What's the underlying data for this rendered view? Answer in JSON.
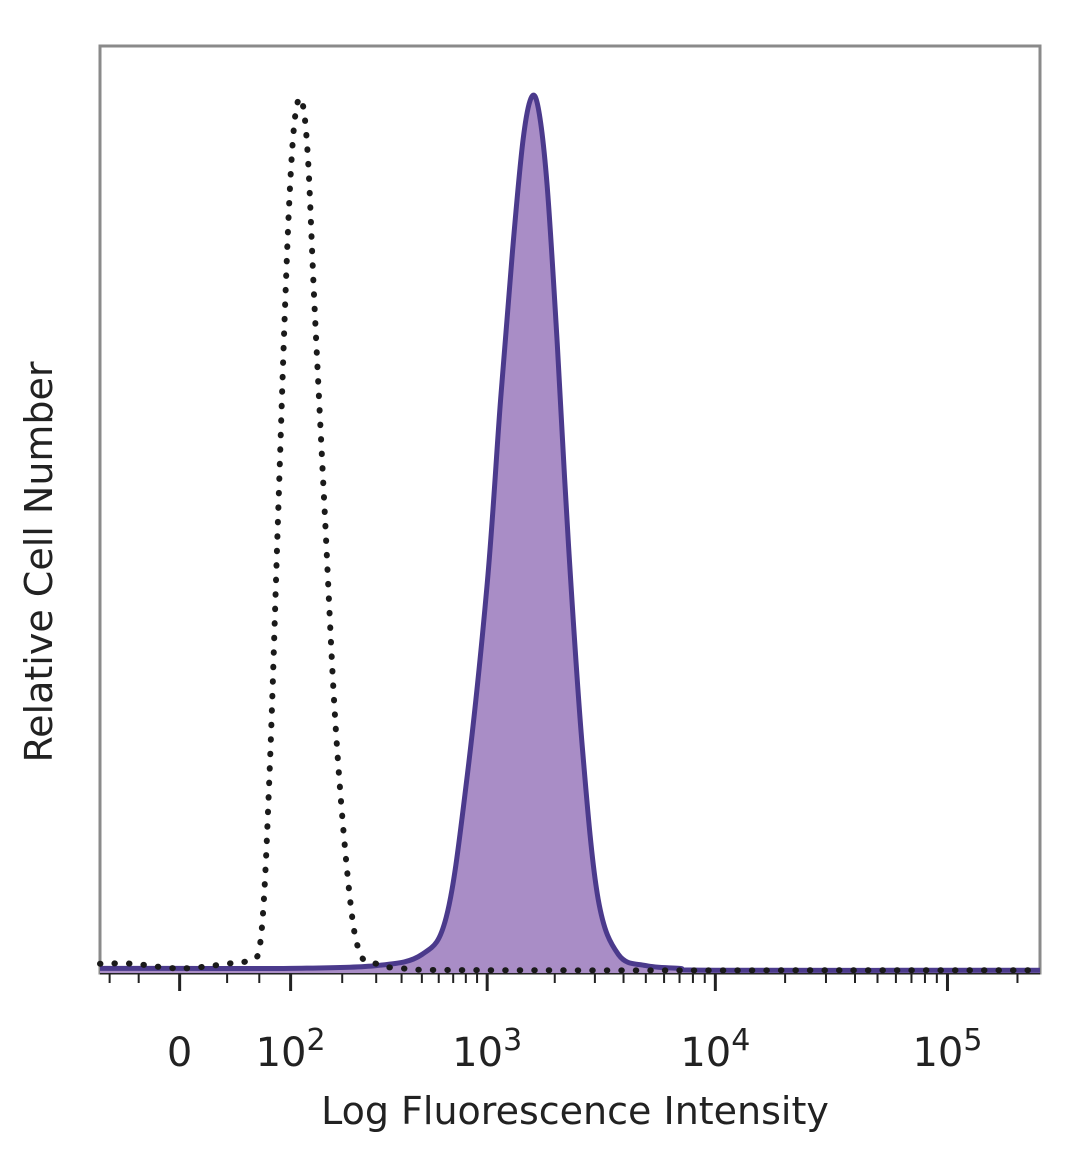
{
  "chart_data": {
    "type": "area",
    "xlabel": "Log Fluorescence Intensity",
    "ylabel": "Relative Cell Number",
    "x_scale": "biexponential",
    "xlim": [
      -60,
      250000
    ],
    "ylim": [
      0,
      100
    ],
    "x_ticks": [
      {
        "value": 0,
        "label": "0"
      },
      {
        "value": 100,
        "label": "10",
        "exp": "2"
      },
      {
        "value": 1000,
        "label": "10",
        "exp": "3"
      },
      {
        "value": 10000,
        "label": "10",
        "exp": "4"
      },
      {
        "value": 100000,
        "label": "10",
        "exp": "5"
      }
    ],
    "minor_ticks": [
      -50,
      -25,
      30,
      60,
      200,
      300,
      400,
      500,
      600,
      700,
      800,
      900,
      2000,
      3000,
      4000,
      5000,
      6000,
      7000,
      8000,
      9000,
      20000,
      30000,
      40000,
      50000,
      60000,
      70000,
      80000,
      90000,
      200000
    ],
    "grid": false,
    "legend": "none",
    "series": [
      {
        "style": "dotted-outline",
        "color": "#1a1a1a",
        "x": [
          -60,
          -30,
          0,
          30,
          50,
          62,
          72,
          82,
          92,
          100,
          108,
          118,
          128,
          140,
          160,
          185,
          220,
          250,
          300,
          400,
          1000,
          250000
        ],
        "y": [
          1,
          1,
          0.5,
          1,
          1.5,
          4,
          22,
          48,
          72,
          86,
          93,
          94,
          88,
          72,
          50,
          26,
          8,
          2,
          1,
          0.5,
          0.3,
          0.3
        ]
      },
      {
        "style": "filled",
        "color": "#4b3a8c",
        "fill": "#a98dc6",
        "x": [
          -60,
          0,
          100,
          300,
          500,
          650,
          800,
          1000,
          1150,
          1300,
          1450,
          1580,
          1700,
          1850,
          2050,
          2300,
          2650,
          3100,
          3800,
          5000,
          7000,
          10000,
          250000
        ],
        "y": [
          0.5,
          0.5,
          0.5,
          0.8,
          2,
          6,
          20,
          42,
          62,
          78,
          90,
          94.5,
          93,
          85,
          68,
          46,
          24,
          8,
          2,
          0.8,
          0.5,
          0.3,
          0.3
        ]
      }
    ]
  }
}
